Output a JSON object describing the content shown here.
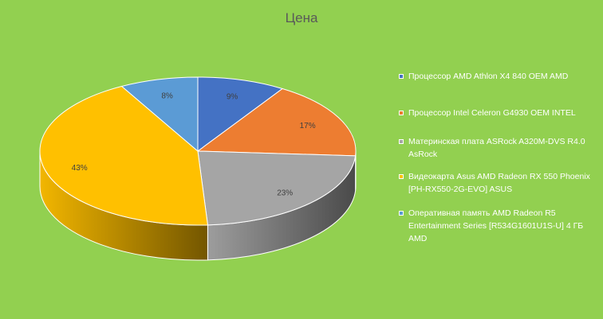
{
  "chart_data": {
    "type": "pie",
    "title": "Цена",
    "categories": [
      "Процессор AMD Athlon X4 840 OEM AMD",
      "Процессор Intel Celeron G4930 OEM INTEL",
      "Материнская плата ASRock A320M-DVS R4.0 AsRock",
      "Видеокарта Asus AMD Radeon RX 550 Phoenix [PH-RX550-2G-EVO] ASUS",
      "Оперативная память AMD Radeon R5 Entertainment Series [R534G1601U1S-U] 4 ГБ AMD"
    ],
    "values": [
      9,
      17,
      23,
      43,
      8
    ],
    "data_labels": [
      "9%",
      "17%",
      "23%",
      "43%",
      "8%"
    ],
    "colors": [
      "#4472c4",
      "#ed7d31",
      "#a5a5a5",
      "#ffc000",
      "#5b9bd5"
    ],
    "legend_position": "right",
    "style": "3d"
  }
}
